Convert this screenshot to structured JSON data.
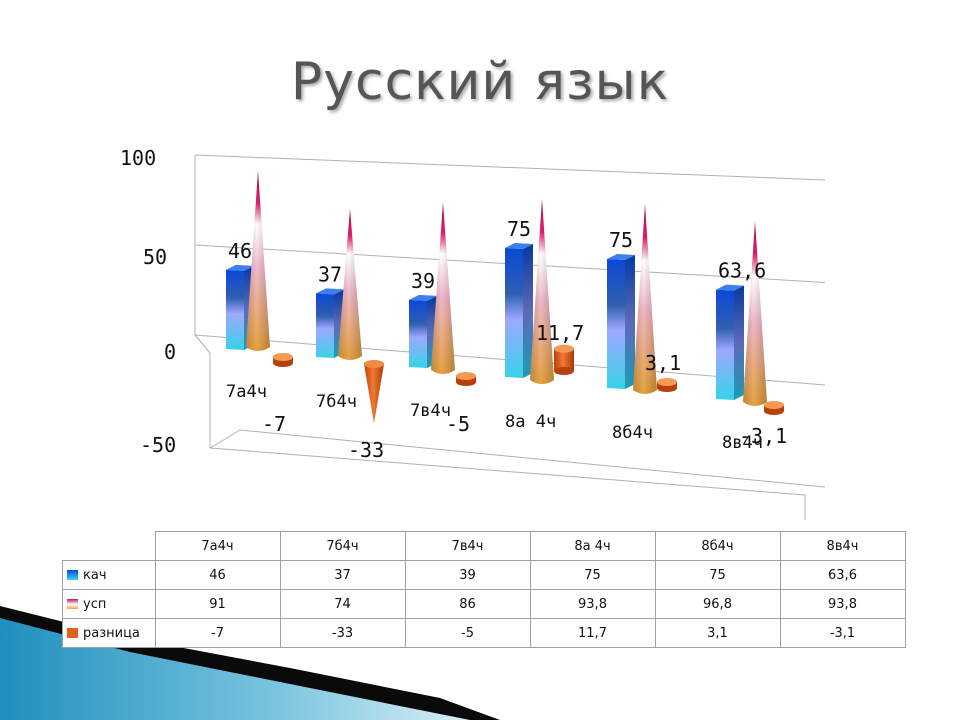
{
  "slide": {
    "title": "Русский язык"
  },
  "colors": {
    "kach": "#1f6fe0",
    "usp": "#e8a33c",
    "usp_tip": "#c0145a",
    "raznica": "#e2611c",
    "deco_blue": "#3aa2c8",
    "deco_dark": "#0a0a0a"
  },
  "chart_data": {
    "type": "bar",
    "title": "",
    "categories": [
      "7а4ч",
      "7б4ч",
      "7в4ч",
      "8а 4ч",
      "8б4ч",
      "8в4ч"
    ],
    "series": [
      {
        "name": "кач",
        "values": [
          46,
          37,
          39,
          75,
          75,
          63.6
        ],
        "labels": [
          "46",
          "37",
          "39",
          "75",
          "75",
          "63,6"
        ],
        "shape": "box",
        "icon": "blue-cuboid-icon"
      },
      {
        "name": "усп",
        "values": [
          91,
          74,
          86,
          93.8,
          96.8,
          93.8
        ],
        "shape": "cone",
        "icon": "gradient-cone-icon"
      },
      {
        "name": "разница",
        "values": [
          -7,
          -33,
          -5,
          11.7,
          3.1,
          -3.1
        ],
        "labels": [
          "-7",
          "-33",
          "-5",
          "11,7",
          "3,1",
          "-3,1"
        ],
        "shape": "cylinder",
        "icon": "orange-cylinder-icon"
      }
    ],
    "ylim": [
      -50,
      100
    ],
    "y_ticks": [
      "100",
      "50",
      "0",
      "-50"
    ],
    "y_tick_values": [
      100,
      50,
      0,
      -50
    ],
    "grid": true,
    "legend": "data-table-below",
    "perspective": "3d"
  },
  "table": {
    "headers": [
      "7а4ч",
      "7б4ч",
      "7в4ч",
      "8а 4ч",
      "8б4ч",
      "8в4ч"
    ],
    "rows": [
      {
        "name": "кач",
        "cells": [
          "46",
          "37",
          "39",
          "75",
          "75",
          "63,6"
        ]
      },
      {
        "name": "усп",
        "cells": [
          "91",
          "74",
          "86",
          "93,8",
          "96,8",
          "93,8"
        ]
      },
      {
        "name": "разница",
        "cells": [
          "-7",
          "-33",
          "-5",
          "11,7",
          "3,1",
          "-3,1"
        ]
      }
    ]
  }
}
